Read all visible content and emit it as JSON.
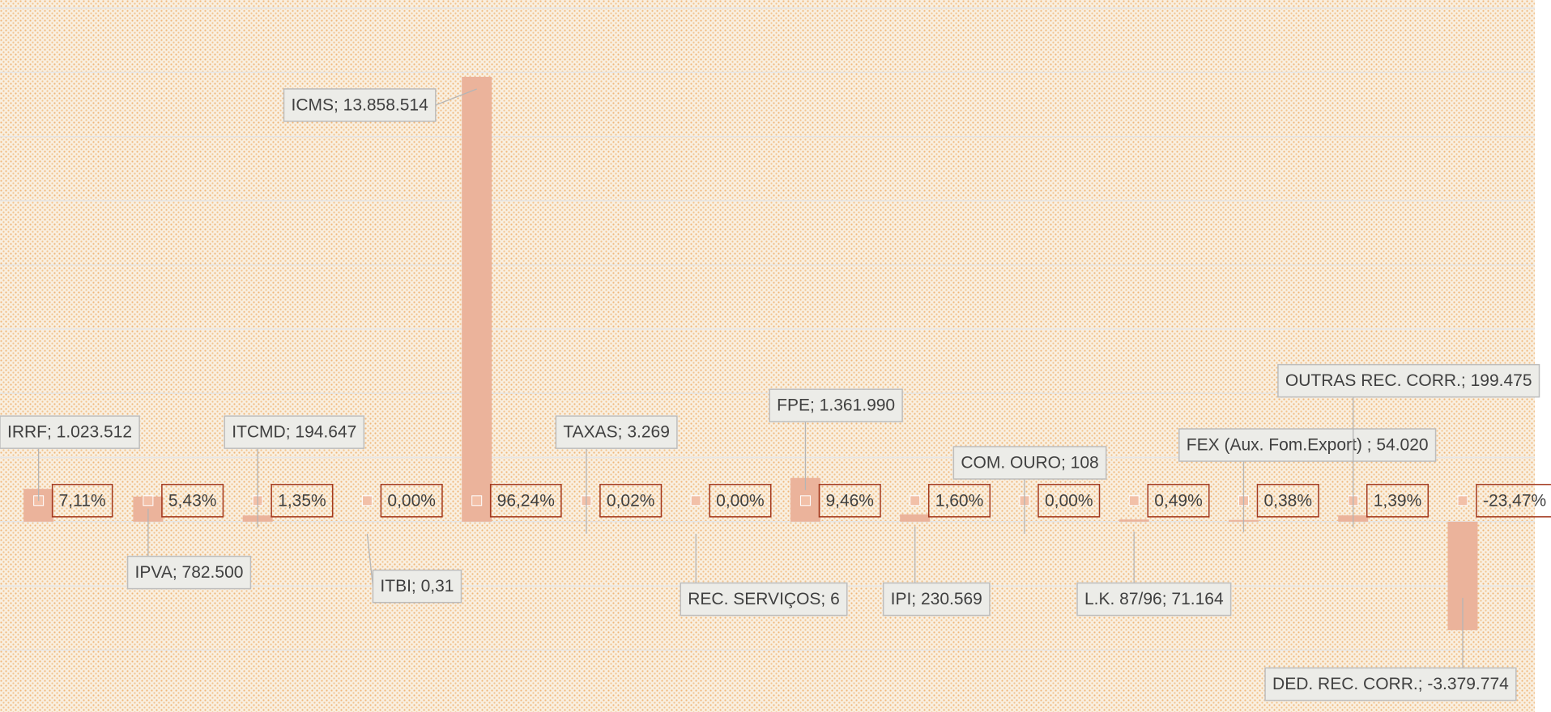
{
  "chart_data": {
    "type": "bar",
    "categories": [
      "IRRF",
      "IPVA",
      "ITCMD",
      "ITBI",
      "ICMS",
      "TAXAS",
      "REC. SERVIÇOS",
      "FPE",
      "IPI",
      "COM. OURO",
      "L.K. 87/96",
      "FEX (Aux. Fom.Export) ",
      "OUTRAS REC. CORR.",
      "DED. REC. CORR."
    ],
    "values": [
      1023512,
      782500,
      194647,
      0.31,
      13858514,
      3269,
      6,
      1361990,
      230569,
      108,
      71164,
      54020,
      199475,
      -3379774
    ],
    "value_labels": [
      "IRRF; 1.023.512",
      "IPVA; 782.500",
      "ITCMD; 194.647",
      "ITBI; 0,31",
      "ICMS; 13.858.514",
      "TAXAS; 3.269",
      "REC. SERVIÇOS; 6",
      "FPE; 1.361.990",
      "IPI; 230.569",
      "COM. OURO; 108",
      "L.K. 87/96; 71.164",
      "FEX (Aux. Fom.Export) ; 54.020",
      "OUTRAS REC. CORR.; 199.475",
      "DED. REC. CORR.; -3.379.774"
    ],
    "percent": {
      "values": [
        7.11,
        5.43,
        1.35,
        0.0,
        96.24,
        0.02,
        0.0,
        9.46,
        1.6,
        0.0,
        0.49,
        0.38,
        1.39,
        -23.47
      ],
      "value_labels": [
        "7,11%",
        "5,43%",
        "1,35%",
        "0,00%",
        "96,24%",
        "0,02%",
        "0,00%",
        "9,46%",
        "1,60%",
        "0,00%",
        "0,49%",
        "0,38%",
        "1,39%",
        "-23,47%"
      ]
    },
    "color": "#ebb39b",
    "ylim": [
      -5500000,
      16000000
    ],
    "yticks": [
      -4000000,
      -2000000,
      0,
      2000000,
      4000000,
      6000000,
      8000000,
      10000000,
      12000000,
      14000000,
      16000000
    ],
    "grid": true
  }
}
